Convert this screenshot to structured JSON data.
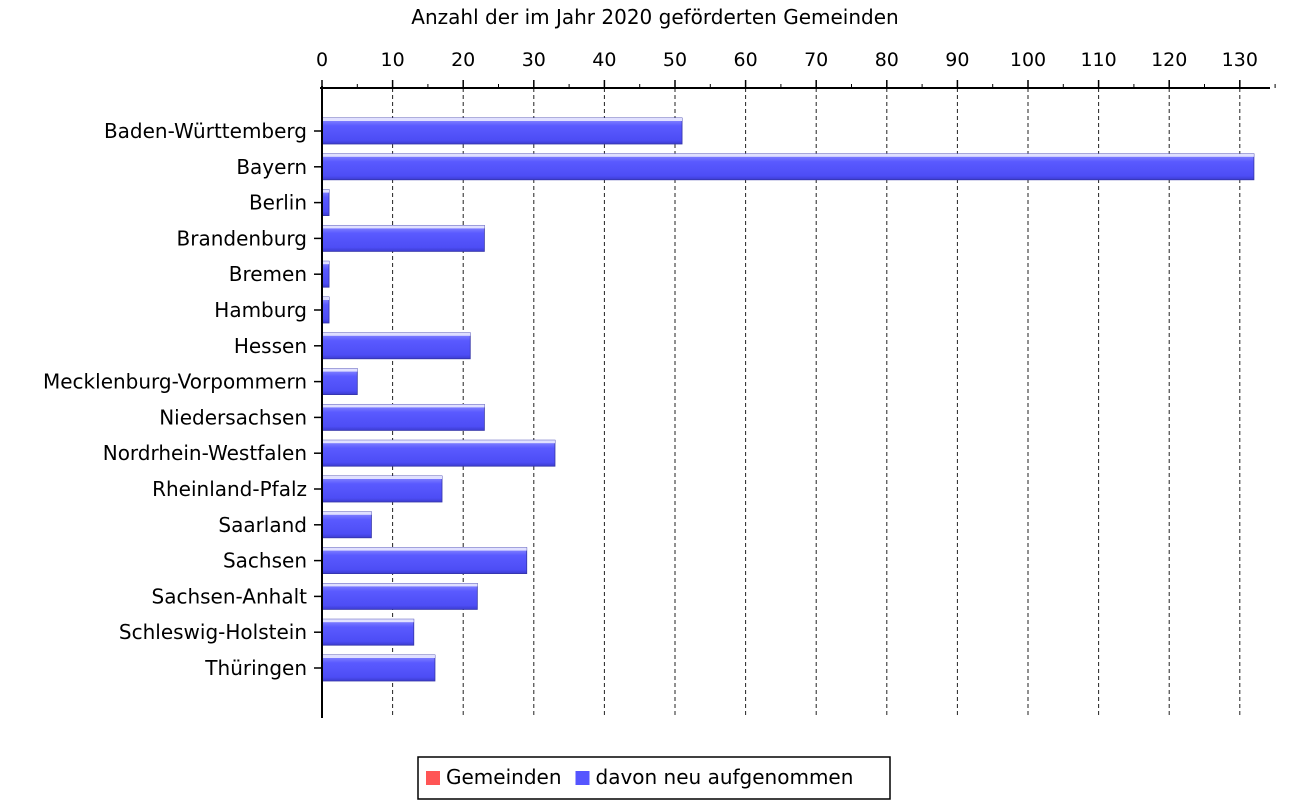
{
  "chart_data": {
    "type": "bar",
    "orientation": "horizontal",
    "title": "",
    "xlabel": "Anzahl der im Jahr 2020 geförderten Gemeinden",
    "ylabel": "",
    "xlim": [
      0,
      135
    ],
    "xticks": [
      0,
      10,
      20,
      30,
      40,
      50,
      60,
      70,
      80,
      90,
      100,
      110,
      120,
      130
    ],
    "x_axis_position": "top",
    "grid": "vertical-dashed",
    "legend_position": "bottom-center",
    "categories": [
      "Baden-Württemberg",
      "Bayern",
      "Berlin",
      "Brandenburg",
      "Bremen",
      "Hamburg",
      "Hessen",
      "Mecklenburg-Vorpommern",
      "Niedersachsen",
      "Nordrhein-Westfalen",
      "Rheinland-Pfalz",
      "Saarland",
      "Sachsen",
      "Sachsen-Anhalt",
      "Schleswig-Holstein",
      "Thüringen"
    ],
    "series": [
      {
        "name": "Gemeinden",
        "color": "#ff5555",
        "values": [
          51,
          132,
          1,
          23,
          1,
          1,
          21,
          5,
          23,
          33,
          17,
          7,
          29,
          22,
          13,
          16
        ]
      },
      {
        "name": "davon neu aufgenommen",
        "color": "#5555ff",
        "values": [
          51,
          132,
          1,
          23,
          1,
          1,
          21,
          5,
          23,
          33,
          17,
          7,
          29,
          22,
          13,
          16
        ]
      }
    ]
  }
}
